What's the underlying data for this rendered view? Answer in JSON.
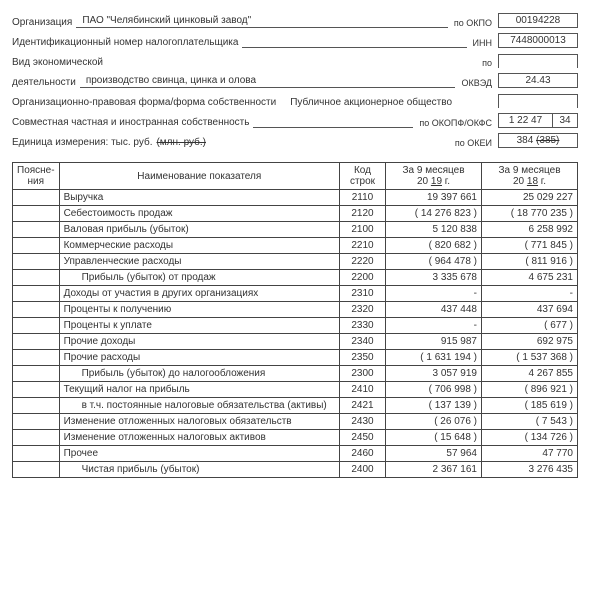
{
  "header": {
    "org_label": "Организация",
    "org_value": "ПАО \"Челябинский цинковый завод\"",
    "okpo_label": "по ОКПО",
    "okpo": "00194228",
    "inn_label": "Идентификационный номер налогоплательщика",
    "inn_code_label": "ИНН",
    "inn": "7448000013",
    "econ_label": "Вид экономической",
    "activity_label": "деятельности",
    "activity_value": "производство свинца, цинка и олова",
    "okved_label": "ОКВЭД",
    "okved": "24.43",
    "po": "по",
    "legal_label": "Организационно-правовая форма/форма собственности",
    "legal_value": "Публичное акционерное общество",
    "ownership_label": "Совместная частная и иностранная собственность",
    "okopf_label": "по ОКОПФ/ОКФС",
    "okopf_a": "1 22 47",
    "okopf_b": "34",
    "unit_label": "Единица измерения: тыс. руб.",
    "unit_strike": "(млн. руб.)",
    "okei_label": "по ОКЕИ",
    "okei_a": "384",
    "okei_b": "(385)"
  },
  "table": {
    "col_expl": "Поясне-\nния",
    "col_name": "Наименование показателя",
    "col_code": "Код строк",
    "col_y1_a": "За 9 месяцев",
    "col_y1_b": "20",
    "col_y1_c": "19",
    "col_y1_d": "г.",
    "col_y2_a": "За 9 месяцев",
    "col_y2_b": "20",
    "col_y2_c": "18",
    "col_y2_d": "г.",
    "rows": [
      {
        "n": "Выручка",
        "c": "2110",
        "v1": "19 397 661",
        "v2": "25 029 227"
      },
      {
        "n": "Себестоимость продаж",
        "c": "2120",
        "v1": "( 14 276 823 )",
        "v2": "( 18 770 235 )"
      },
      {
        "n": "Валовая прибыль (убыток)",
        "c": "2100",
        "v1": "5 120 838",
        "v2": "6 258 992"
      },
      {
        "n": "Коммерческие расходы",
        "c": "2210",
        "v1": "( 820 682 )",
        "v2": "( 771 845 )"
      },
      {
        "n": "Управленческие расходы",
        "c": "2220",
        "v1": "( 964 478 )",
        "v2": "( 811 916 )"
      },
      {
        "n": "Прибыль (убыток) от продаж",
        "ind": true,
        "c": "2200",
        "v1": "3 335 678",
        "v2": "4 675 231"
      },
      {
        "n": "Доходы от участия в других организациях",
        "c": "2310",
        "v1": "-",
        "v2": "-"
      },
      {
        "n": "Проценты к получению",
        "c": "2320",
        "v1": "437 448",
        "v2": "437 694"
      },
      {
        "n": "Проценты к уплате",
        "c": "2330",
        "v1": "-",
        "v2": "( 677 )"
      },
      {
        "n": "Прочие доходы",
        "c": "2340",
        "v1": "915 987",
        "v2": "692 975"
      },
      {
        "n": "Прочие расходы",
        "c": "2350",
        "v1": "( 1 631 194 )",
        "v2": "( 1 537 368 )"
      },
      {
        "n": "Прибыль (убыток) до налогообложения",
        "ind": true,
        "c": "2300",
        "v1": "3 057 919",
        "v2": "4 267 855"
      },
      {
        "n": "Текущий налог на прибыль",
        "c": "2410",
        "v1": "( 706 998 )",
        "v2": "( 896 921 )"
      },
      {
        "n": "в т.ч. постоянные налоговые обязательства (активы)",
        "ind": true,
        "c": "2421",
        "v1": "( 137 139 )",
        "v2": "( 185 619 )"
      },
      {
        "n": "Изменение отложенных налоговых обязательств",
        "c": "2430",
        "v1": "( 26 076 )",
        "v2": "( 7 543 )"
      },
      {
        "n": "Изменение отложенных налоговых активов",
        "c": "2450",
        "v1": "( 15 648 )",
        "v2": "( 134 726 )"
      },
      {
        "n": "Прочее",
        "c": "2460",
        "v1": "57 964",
        "v2": "47 770"
      },
      {
        "n": "Чистая прибыль (убыток)",
        "ind": true,
        "c": "2400",
        "v1": "2 367 161",
        "v2": "3 276 435"
      }
    ]
  }
}
